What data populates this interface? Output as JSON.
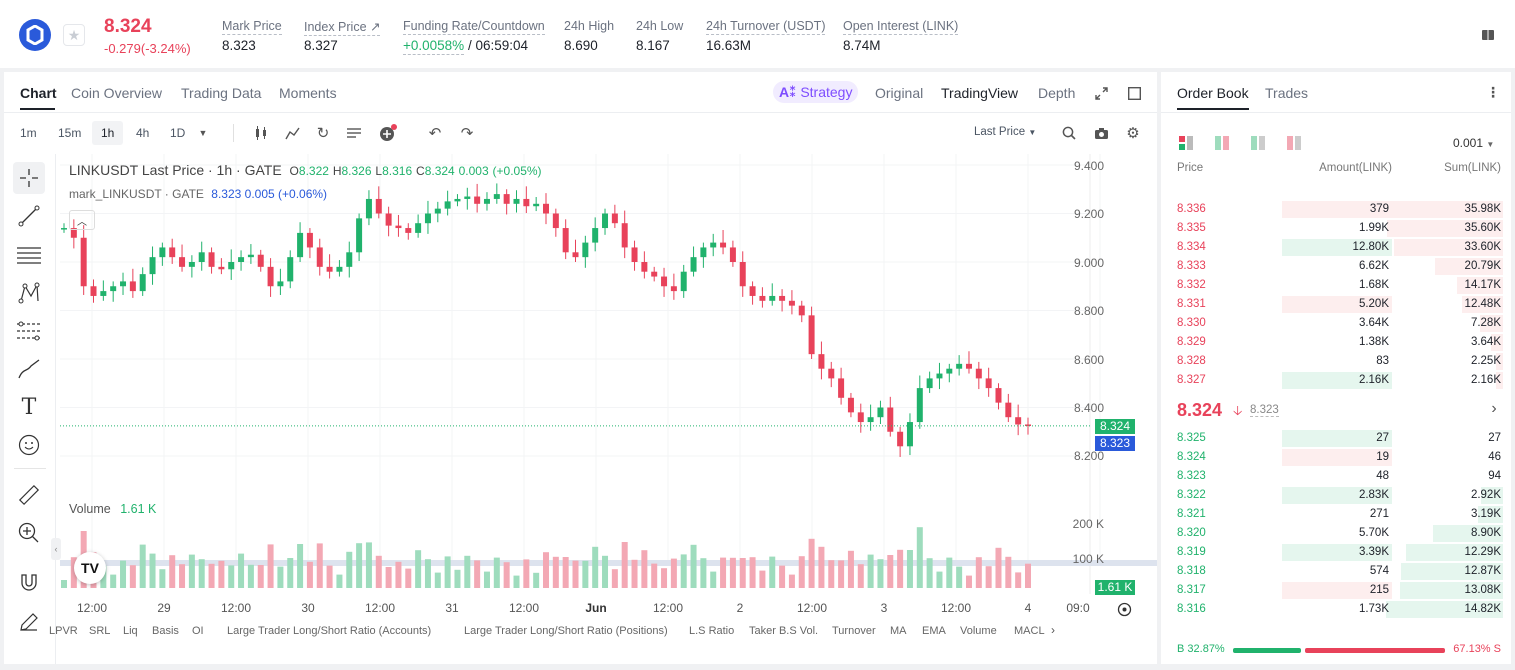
{
  "header": {
    "price": "8.324",
    "change": "-0.279(-3.24%)",
    "stats": [
      {
        "label": "Mark Price",
        "value": "8.323"
      },
      {
        "label": "Index Price ↗",
        "value": "8.327"
      },
      {
        "label": "Funding Rate/Countdown",
        "value_green": "+0.0058%",
        "value_rest": "/ 06:59:04"
      },
      {
        "label": "24h High",
        "value": "8.690"
      },
      {
        "label": "24h Low",
        "value": "8.167"
      },
      {
        "label": "24h Turnover (USDT)",
        "value": "16.63M"
      },
      {
        "label": "Open Interest (LINK)",
        "value": "8.74M"
      }
    ]
  },
  "chart_tabs": [
    "Chart",
    "Coin Overview",
    "Trading Data",
    "Moments"
  ],
  "view_tabs": {
    "strategy": "Strategy",
    "original": "Original",
    "tradingview": "TradingView",
    "depth": "Depth"
  },
  "intervals": [
    "1m",
    "15m",
    "1h",
    "4h",
    "1D"
  ],
  "last_price_select": "Last Price",
  "legend": {
    "title": "LINKUSDT Last Price · 1h · GATE",
    "o_l": "O",
    "o": "8.322",
    "h_l": "H",
    "h": "8.326",
    "l_l": "L",
    "l": "8.316",
    "c_l": "C",
    "c": "8.324",
    "chg": "0.003",
    "chg_pct": "(+0.05%)",
    "mark_title": "mark_LINKUSDT · GATE",
    "mark_val": "8.323",
    "mark_chg": "0.005",
    "mark_pct": "(+0.06%)"
  },
  "price_axis": [
    "9.400",
    "9.200",
    "9.000",
    "8.800",
    "8.600",
    "8.400",
    "8.200"
  ],
  "price_tags": {
    "last": "8.324",
    "mark": "8.323"
  },
  "volume": {
    "label": "Volume",
    "value": "1.61 K",
    "axis": [
      "200 K",
      "100 K"
    ],
    "tag": "1.61 K"
  },
  "time_axis": [
    "12:00",
    "29",
    "12:00",
    "30",
    "12:00",
    "31",
    "12:00",
    "Jun",
    "12:00",
    "2",
    "12:00",
    "3",
    "12:00",
    "4",
    "09:0"
  ],
  "indicators": [
    "LPVR",
    "SRL",
    "Liq",
    "Basis",
    "OI",
    "Large Trader Long/Short Ratio (Accounts)",
    "Large Trader Long/Short Ratio (Positions)",
    "L.S Ratio",
    "Taker B.S Vol.",
    "Turnover",
    "MA",
    "EMA",
    "Volume",
    "MACL"
  ],
  "orderbook": {
    "tabs": [
      "Order Book",
      "Trades"
    ],
    "precision": "0.001",
    "cols": [
      "Price",
      "Amount(LINK)",
      "Sum(LINK)"
    ],
    "asks": [
      {
        "p": "8.336",
        "a": "379",
        "s": "35.98K",
        "ar": 0.02,
        "sr": 1.0
      },
      {
        "p": "8.335",
        "a": "1.99K",
        "s": "35.60K",
        "ar": 0.0,
        "sr": 0.99
      },
      {
        "p": "8.334",
        "a": "12.80K",
        "s": "33.60K",
        "ar": 1.0,
        "sr": 0.93,
        "ag": true
      },
      {
        "p": "8.333",
        "a": "6.62K",
        "s": "20.79K",
        "ar": 0.0,
        "sr": 0.58
      },
      {
        "p": "8.332",
        "a": "1.68K",
        "s": "14.17K",
        "ar": 0.0,
        "sr": 0.39
      },
      {
        "p": "8.331",
        "a": "5.20K",
        "s": "12.48K",
        "ar": 1.0,
        "sr": 0.35
      },
      {
        "p": "8.330",
        "a": "3.64K",
        "s": "7.28K",
        "ar": 0.0,
        "sr": 0.2
      },
      {
        "p": "8.329",
        "a": "1.38K",
        "s": "3.64K",
        "ar": 0.0,
        "sr": 0.1
      },
      {
        "p": "8.328",
        "a": "83",
        "s": "2.25K",
        "ar": 0.0,
        "sr": 0.06
      },
      {
        "p": "8.327",
        "a": "2.16K",
        "s": "2.16K",
        "ar": 1.0,
        "sr": 0.06,
        "ag": true
      }
    ],
    "last": "8.324",
    "mark": "8.323",
    "bids": [
      {
        "p": "8.325",
        "a": "27",
        "s": "27",
        "ar": 1.0,
        "sr": 0.0,
        "ag": true
      },
      {
        "p": "8.324",
        "a": "19",
        "s": "46",
        "ar": 1.0,
        "sr": 0.0,
        "ar_red": true
      },
      {
        "p": "8.323",
        "a": "48",
        "s": "94",
        "ar": 0.0,
        "sr": 0.0
      },
      {
        "p": "8.322",
        "a": "2.83K",
        "s": "2.92K",
        "ar": 1.0,
        "sr": 0.19,
        "ag": true
      },
      {
        "p": "8.321",
        "a": "271",
        "s": "3.19K",
        "ar": 0.0,
        "sr": 0.21
      },
      {
        "p": "8.320",
        "a": "5.70K",
        "s": "8.90K",
        "ar": 0.0,
        "sr": 0.6
      },
      {
        "p": "8.319",
        "a": "3.39K",
        "s": "12.29K",
        "ar": 1.0,
        "sr": 0.83,
        "ag": true
      },
      {
        "p": "8.318",
        "a": "574",
        "s": "12.87K",
        "ar": 0.0,
        "sr": 0.87
      },
      {
        "p": "8.317",
        "a": "215",
        "s": "13.08K",
        "ar": 1.0,
        "sr": 0.88,
        "ar_red": true
      },
      {
        "p": "8.316",
        "a": "1.73K",
        "s": "14.82K",
        "ar": 0.0,
        "sr": 1.0
      }
    ],
    "buy_label": "B",
    "buy_pct": "32.87%",
    "sell_pct": "67.13%",
    "sell_label": "S",
    "buy_ratio": 0.3287
  },
  "colors": {
    "up": "#20b26c",
    "down": "#e8425a",
    "accent": "#2a5ada"
  }
}
